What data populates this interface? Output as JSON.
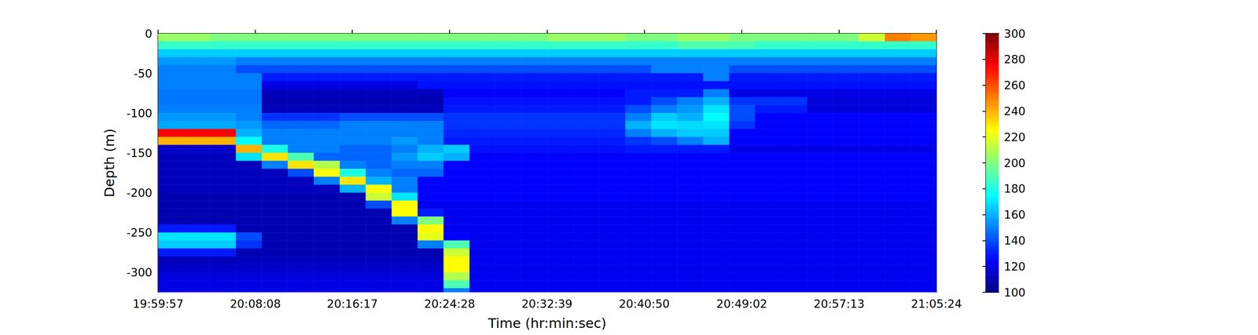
{
  "chart_data": {
    "type": "heatmap",
    "x_label": "Time (hr:min:sec)",
    "y_label": "Depth (m)",
    "xlim": [
      71997,
      75924
    ],
    "xticks": [
      {
        "value": 71997,
        "label": "19:59:57"
      },
      {
        "value": 72488,
        "label": "20:08:08"
      },
      {
        "value": 72977,
        "label": "20:16:17"
      },
      {
        "value": 73468,
        "label": "20:24:28"
      },
      {
        "value": 73959,
        "label": "20:32:39"
      },
      {
        "value": 74450,
        "label": "20:40:50"
      },
      {
        "value": 74942,
        "label": "20:49:02"
      },
      {
        "value": 75433,
        "label": "20:57:13"
      },
      {
        "value": 75924,
        "label": "21:05:24"
      }
    ],
    "ylim": [
      -325,
      0
    ],
    "yticks": [
      0,
      -50,
      -100,
      -150,
      -200,
      -250,
      -300
    ],
    "cells": {
      "x_edges": [
        71997,
        72128,
        72259,
        72390,
        72521,
        72652,
        72783,
        72914,
        73045,
        73176,
        73307,
        73438,
        73569,
        73700,
        73831,
        73962,
        74093,
        74224,
        74355,
        74486,
        74617,
        74748,
        74879,
        75010,
        75141,
        75272,
        75403,
        75534,
        75665,
        75796,
        75924
      ],
      "y_edges": [
        0,
        -10,
        -20,
        -30,
        -40,
        -50,
        -60,
        -70,
        -80,
        -90,
        -100,
        -110,
        -120,
        -130,
        -140,
        -150,
        -160,
        -170,
        -180,
        -190,
        -200,
        -210,
        -220,
        -230,
        -240,
        -250,
        -260,
        -270,
        -280,
        -290,
        -300,
        -310,
        -320,
        -325
      ],
      "values": [
        [
          205,
          205,
          200,
          200,
          200,
          200,
          200,
          200,
          200,
          200,
          200,
          200,
          200,
          200,
          200,
          205,
          205,
          205,
          200,
          200,
          205,
          205,
          200,
          200,
          200,
          200,
          200,
          215,
          250,
          245
        ],
        [
          185,
          185,
          185,
          185,
          185,
          185,
          185,
          185,
          185,
          185,
          185,
          185,
          185,
          185,
          185,
          185,
          185,
          185,
          185,
          185,
          190,
          190,
          190,
          185,
          185,
          185,
          185,
          185,
          185,
          185
        ],
        [
          165,
          165,
          165,
          165,
          165,
          165,
          165,
          165,
          165,
          165,
          165,
          165,
          165,
          165,
          165,
          165,
          165,
          165,
          165,
          165,
          165,
          165,
          165,
          165,
          165,
          165,
          165,
          165,
          165,
          165
        ],
        [
          155,
          155,
          155,
          150,
          150,
          150,
          150,
          150,
          150,
          150,
          150,
          150,
          150,
          150,
          150,
          150,
          150,
          150,
          150,
          150,
          150,
          150,
          150,
          150,
          150,
          150,
          150,
          150,
          150,
          150
        ],
        [
          150,
          150,
          150,
          140,
          140,
          140,
          140,
          140,
          140,
          140,
          140,
          140,
          140,
          140,
          140,
          140,
          140,
          140,
          140,
          150,
          150,
          150,
          140,
          140,
          140,
          140,
          140,
          140,
          140,
          140
        ],
        [
          150,
          150,
          150,
          150,
          130,
          130,
          130,
          130,
          130,
          130,
          130,
          130,
          130,
          130,
          130,
          130,
          130,
          130,
          130,
          130,
          130,
          150,
          130,
          130,
          130,
          130,
          130,
          130,
          130,
          130
        ],
        [
          150,
          150,
          150,
          150,
          120,
          120,
          120,
          120,
          120,
          120,
          128,
          128,
          128,
          128,
          128,
          128,
          128,
          128,
          128,
          128,
          128,
          128,
          128,
          128,
          128,
          128,
          128,
          128,
          128,
          128
        ],
        [
          148,
          148,
          148,
          148,
          112,
          112,
          112,
          112,
          112,
          112,
          112,
          125,
          125,
          125,
          125,
          125,
          125,
          125,
          130,
          130,
          130,
          150,
          120,
          120,
          120,
          120,
          120,
          120,
          120,
          120
        ],
        [
          148,
          148,
          148,
          148,
          110,
          110,
          110,
          110,
          110,
          110,
          110,
          128,
          128,
          128,
          128,
          128,
          128,
          128,
          130,
          140,
          150,
          160,
          135,
          135,
          135,
          118,
          118,
          118,
          118,
          118
        ],
        [
          150,
          150,
          150,
          150,
          112,
          112,
          112,
          112,
          112,
          112,
          112,
          130,
          130,
          130,
          130,
          130,
          130,
          130,
          140,
          150,
          155,
          170,
          140,
          130,
          130,
          118,
          118,
          118,
          118,
          118
        ],
        [
          155,
          155,
          155,
          150,
          135,
          135,
          135,
          140,
          140,
          140,
          140,
          135,
          135,
          135,
          135,
          135,
          135,
          135,
          150,
          165,
          160,
          175,
          140,
          125,
          125,
          125,
          125,
          125,
          125,
          125
        ],
        [
          158,
          158,
          158,
          155,
          145,
          145,
          145,
          150,
          150,
          150,
          150,
          135,
          135,
          135,
          135,
          135,
          135,
          135,
          160,
          170,
          168,
          170,
          135,
          125,
          125,
          125,
          125,
          125,
          125,
          125
        ],
        [
          275,
          275,
          275,
          160,
          150,
          150,
          150,
          150,
          150,
          150,
          150,
          132,
          132,
          132,
          132,
          132,
          132,
          132,
          150,
          160,
          165,
          165,
          125,
          125,
          125,
          125,
          125,
          125,
          125,
          125
        ],
        [
          240,
          240,
          240,
          175,
          150,
          150,
          150,
          150,
          150,
          155,
          150,
          130,
          130,
          130,
          130,
          130,
          130,
          130,
          135,
          140,
          150,
          160,
          125,
          125,
          125,
          125,
          125,
          125,
          125,
          125
        ],
        [
          115,
          115,
          115,
          240,
          180,
          150,
          150,
          145,
          145,
          150,
          160,
          165,
          128,
          128,
          128,
          128,
          128,
          128,
          130,
          130,
          130,
          130,
          120,
          120,
          120,
          120,
          120,
          120,
          120,
          120
        ],
        [
          112,
          112,
          112,
          170,
          230,
          190,
          145,
          145,
          145,
          155,
          165,
          160,
          125,
          125,
          125,
          125,
          125,
          125,
          125,
          125,
          125,
          125,
          125,
          125,
          125,
          125,
          125,
          125,
          125,
          125
        ],
        [
          112,
          112,
          112,
          112,
          150,
          230,
          210,
          150,
          145,
          150,
          150,
          125,
          125,
          125,
          125,
          125,
          125,
          125,
          125,
          125,
          125,
          125,
          125,
          125,
          125,
          125,
          125,
          125,
          125,
          125
        ],
        [
          112,
          112,
          112,
          112,
          112,
          140,
          225,
          180,
          150,
          145,
          145,
          125,
          125,
          125,
          125,
          125,
          125,
          125,
          125,
          125,
          125,
          125,
          125,
          125,
          125,
          125,
          125,
          125,
          125,
          125
        ],
        [
          112,
          112,
          112,
          112,
          112,
          112,
          150,
          230,
          160,
          150,
          125,
          125,
          125,
          125,
          125,
          125,
          125,
          125,
          125,
          125,
          125,
          125,
          125,
          125,
          125,
          125,
          125,
          125,
          125,
          125
        ],
        [
          112,
          112,
          112,
          112,
          112,
          112,
          112,
          160,
          225,
          150,
          125,
          125,
          125,
          125,
          125,
          125,
          125,
          125,
          125,
          125,
          125,
          125,
          125,
          125,
          125,
          125,
          125,
          125,
          125,
          125
        ],
        [
          110,
          110,
          110,
          110,
          110,
          110,
          110,
          110,
          215,
          170,
          125,
          125,
          125,
          125,
          125,
          125,
          125,
          125,
          125,
          125,
          125,
          125,
          125,
          125,
          125,
          125,
          125,
          125,
          125,
          125
        ],
        [
          110,
          110,
          110,
          110,
          110,
          110,
          110,
          110,
          140,
          225,
          122,
          122,
          122,
          122,
          122,
          122,
          122,
          122,
          122,
          122,
          122,
          122,
          122,
          122,
          122,
          122,
          122,
          122,
          122,
          122
        ],
        [
          110,
          110,
          110,
          110,
          110,
          110,
          110,
          110,
          110,
          225,
          130,
          122,
          122,
          122,
          122,
          122,
          122,
          122,
          122,
          122,
          122,
          122,
          122,
          122,
          122,
          122,
          122,
          122,
          122,
          122
        ],
        [
          110,
          110,
          110,
          110,
          110,
          110,
          110,
          110,
          110,
          150,
          200,
          122,
          122,
          122,
          122,
          122,
          122,
          122,
          122,
          122,
          122,
          122,
          122,
          122,
          122,
          122,
          122,
          122,
          122,
          122
        ],
        [
          130,
          130,
          130,
          110,
          110,
          110,
          110,
          110,
          110,
          110,
          225,
          122,
          122,
          122,
          122,
          122,
          122,
          122,
          122,
          122,
          122,
          122,
          122,
          122,
          122,
          122,
          122,
          122,
          122,
          122
        ],
        [
          170,
          170,
          170,
          140,
          110,
          110,
          110,
          110,
          110,
          110,
          220,
          125,
          122,
          122,
          122,
          122,
          122,
          122,
          122,
          122,
          122,
          122,
          122,
          122,
          122,
          122,
          122,
          122,
          122,
          122
        ],
        [
          165,
          165,
          165,
          135,
          110,
          110,
          110,
          110,
          110,
          110,
          150,
          190,
          122,
          122,
          122,
          122,
          122,
          122,
          122,
          122,
          122,
          122,
          122,
          122,
          122,
          122,
          122,
          122,
          122,
          122
        ],
        [
          130,
          130,
          130,
          110,
          110,
          110,
          110,
          110,
          110,
          110,
          110,
          215,
          122,
          122,
          122,
          122,
          122,
          122,
          122,
          122,
          122,
          122,
          122,
          122,
          122,
          122,
          122,
          122,
          122,
          122
        ],
        [
          112,
          112,
          112,
          112,
          112,
          112,
          112,
          112,
          112,
          112,
          112,
          225,
          122,
          122,
          122,
          122,
          122,
          122,
          122,
          122,
          122,
          122,
          122,
          122,
          122,
          122,
          122,
          122,
          122,
          122
        ],
        [
          115,
          115,
          115,
          115,
          115,
          115,
          115,
          115,
          115,
          115,
          115,
          225,
          122,
          122,
          122,
          122,
          122,
          122,
          122,
          122,
          122,
          122,
          122,
          122,
          122,
          122,
          122,
          122,
          122,
          122
        ],
        [
          118,
          118,
          118,
          118,
          118,
          118,
          118,
          118,
          118,
          118,
          118,
          210,
          122,
          122,
          122,
          122,
          122,
          122,
          122,
          122,
          122,
          122,
          122,
          122,
          122,
          122,
          122,
          122,
          122,
          122
        ],
        [
          120,
          120,
          120,
          120,
          120,
          120,
          120,
          120,
          120,
          120,
          120,
          190,
          122,
          122,
          122,
          122,
          122,
          122,
          122,
          122,
          122,
          122,
          122,
          122,
          122,
          122,
          122,
          122,
          122,
          122
        ],
        [
          120,
          120,
          120,
          120,
          120,
          120,
          120,
          120,
          120,
          120,
          120,
          150,
          122,
          122,
          122,
          122,
          122,
          122,
          122,
          122,
          122,
          122,
          122,
          122,
          122,
          122,
          122,
          122,
          122,
          122
        ]
      ]
    },
    "colorbar": {
      "range": [
        100,
        300
      ],
      "ticks": [
        100,
        120,
        140,
        160,
        180,
        200,
        220,
        240,
        260,
        280,
        300
      ]
    }
  }
}
